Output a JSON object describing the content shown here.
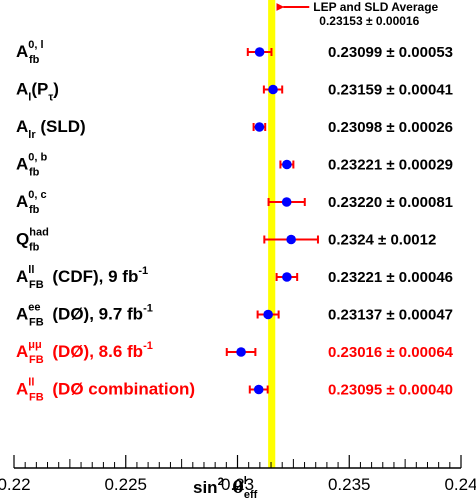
{
  "chart_data": {
    "type": "scatter",
    "orientation": "horizontal-error-bars",
    "xlim": [
      0.22,
      0.24
    ],
    "x_ticks": [
      "0.22",
      "0.225",
      "0.23",
      "0.235",
      "0.24"
    ],
    "xlabel": {
      "main": "sin",
      "sup": "2",
      "theta": "θ",
      "theta_sup": "l",
      "theta_sub": "eff"
    },
    "average": {
      "value": 0.23153,
      "error": 0.00016,
      "label": "LEP and SLD Average",
      "value_label": "0.23153 ± 0.00016",
      "color": "#ffff00"
    },
    "colors": {
      "black": "#000000",
      "red": "#ff0000",
      "marker": "#0000ff",
      "errorbar": "#ff0000"
    },
    "points": [
      {
        "label": {
          "base": "A",
          "sup": "0, l",
          "sub": "fb",
          "rest": ""
        },
        "value": 0.23099,
        "error": 0.00053,
        "value_label": "0.23099 ± 0.00053",
        "color": "black"
      },
      {
        "label": {
          "base": "A",
          "sup": "",
          "sub": "l",
          "rest": "(P",
          "rest_sub": "τ",
          "rest_end": ")"
        },
        "value": 0.23159,
        "error": 0.00041,
        "value_label": "0.23159 ± 0.00041",
        "color": "black"
      },
      {
        "label": {
          "base": "A",
          "sup": "",
          "sub": "lr",
          "rest": " (SLD)"
        },
        "value": 0.23098,
        "error": 0.00026,
        "value_label": "0.23098 ± 0.00026",
        "color": "black"
      },
      {
        "label": {
          "base": "A",
          "sup": "0, b",
          "sub": "fb",
          "rest": ""
        },
        "value": 0.23221,
        "error": 0.00029,
        "value_label": "0.23221 ± 0.00029",
        "color": "black"
      },
      {
        "label": {
          "base": "A",
          "sup": "0, c",
          "sub": "fb",
          "rest": ""
        },
        "value": 0.2322,
        "error": 0.00081,
        "value_label": "0.23220 ± 0.00081",
        "color": "black"
      },
      {
        "label": {
          "base": "Q",
          "sup": "had",
          "sub": "fb",
          "rest": ""
        },
        "value": 0.2324,
        "error": 0.0012,
        "value_label": "0.2324 ± 0.0012",
        "color": "black"
      },
      {
        "label": {
          "base": "A",
          "sup": "ll",
          "sub": "FB",
          "rest": " (CDF), 9 fb",
          "rest_sup": "-1"
        },
        "value": 0.23221,
        "error": 0.00046,
        "value_label": "0.23221 ± 0.00046",
        "color": "black"
      },
      {
        "label": {
          "base": "A",
          "sup": "ee",
          "sub": "FB",
          "rest": " (DØ), 9.7 fb",
          "rest_sup": "-1"
        },
        "value": 0.23137,
        "error": 0.00047,
        "value_label": "0.23137 ± 0.00047",
        "color": "black"
      },
      {
        "label": {
          "base": "A",
          "sup": "μμ",
          "sub": "FB",
          "rest": " (DØ), 8.6 fb",
          "rest_sup": "-1"
        },
        "value": 0.23016,
        "error": 0.00064,
        "value_label": "0.23016 ± 0.00064",
        "color": "red"
      },
      {
        "label": {
          "base": "A",
          "sup": "ll",
          "sub": "FB",
          "rest": " (DØ combination)"
        },
        "value": 0.23095,
        "error": 0.0004,
        "value_label": "0.23095 ± 0.00040",
        "color": "red"
      }
    ]
  }
}
